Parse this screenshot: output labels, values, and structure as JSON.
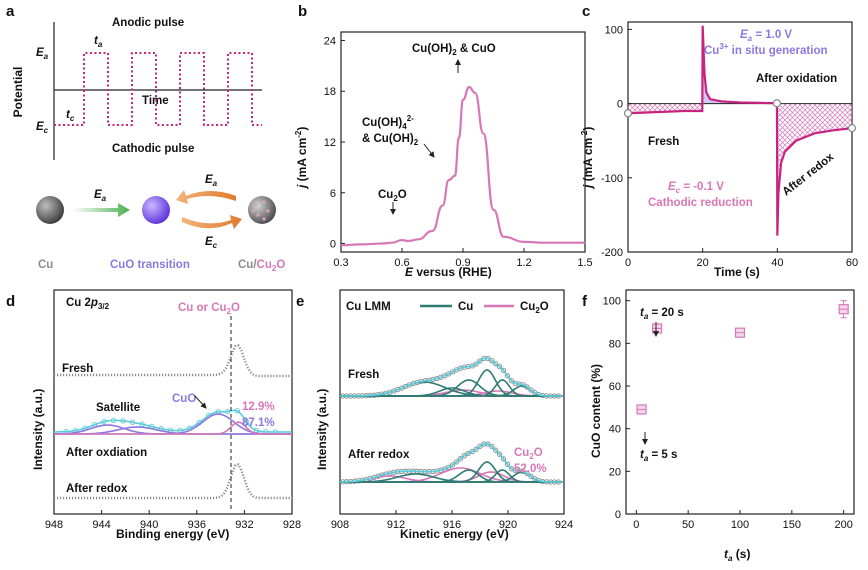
{
  "figure_title": "",
  "colors": {
    "pink": "#d877b8",
    "magenta": "#c8247f",
    "purple": "#8b78e0",
    "teal": "#2f7b74",
    "cyan": "#5ccbd9",
    "gray": "#8a8a8a",
    "orange": "#e07a2e",
    "green": "#5cba5c"
  },
  "panel_a": {
    "label": "a",
    "anodic": "Anodic pulse",
    "cathodic": "Cathodic pulse",
    "ylabel": "Potential",
    "xlabel": "Time",
    "ea": "E",
    "ea_sub": "a",
    "ec": "E",
    "ec_sub": "c",
    "ta": "t",
    "ta_sub": "a",
    "tc": "t",
    "tc_sub": "c",
    "arrow_ea": "E",
    "arrow_ea_sub": "a",
    "arrow_ec": "E",
    "arrow_ec_sub": "c",
    "lbl_cu": "Cu",
    "lbl_cuo": "CuO transition",
    "lbl_cu2o_a": "Cu/",
    "lbl_cu2o_b": "Cu",
    "lbl_cu2o_sub": "2",
    "lbl_cu2o_c": "O"
  },
  "chart_data": [
    {
      "panel": "b",
      "type": "line",
      "xlabel_pre": "E",
      "xlabel_post": " versus (RHE)",
      "ylabel_pre": "j",
      "ylabel_post": " (mA cm",
      "ylabel_sup": "-2",
      "ylabel_end": ")",
      "xlim": [
        0.3,
        1.5
      ],
      "ylim": [
        -1,
        25
      ],
      "xticks": [
        "0.3",
        "0.6",
        "0.9",
        "1.2",
        "1.5"
      ],
      "xtick_vals": [
        0.3,
        0.6,
        0.9,
        1.2,
        1.5
      ],
      "yticks": [
        "0",
        "6",
        "12",
        "18",
        "24"
      ],
      "ytick_vals": [
        0,
        6,
        12,
        18,
        24
      ],
      "series": [
        {
          "name": "LSV",
          "x": [
            0.3,
            0.4,
            0.5,
            0.55,
            0.6,
            0.63,
            0.68,
            0.75,
            0.8,
            0.83,
            0.86,
            0.88,
            0.9,
            0.93,
            0.96,
            1.0,
            1.05,
            1.1,
            1.2,
            1.3,
            1.5
          ],
          "y": [
            -0.2,
            -0.1,
            0,
            0.1,
            0.4,
            0.3,
            0.5,
            1.5,
            4.5,
            7.5,
            8.0,
            12.5,
            17.0,
            18.5,
            17.8,
            13.0,
            4.0,
            0.8,
            0.2,
            0.1,
            0.1
          ]
        }
      ],
      "annotations": {
        "peak1_a": "Cu",
        "peak1_sub": "2",
        "peak1_b": "O",
        "peak2_l1_a": "Cu(OH)",
        "peak2_l1_sub": "4",
        "peak2_l1_sup": "2-",
        "peak2_l2_a": "& Cu(OH)",
        "peak2_l2_sub": "2",
        "peak3_a": "Cu(OH)",
        "peak3_sub": "2",
        "peak3_b": " & CuO"
      }
    },
    {
      "panel": "c",
      "type": "line",
      "xlabel": "Time (s)",
      "ylabel_pre": "j",
      "ylabel_post": " (mA cm",
      "ylabel_sup": "-2",
      "ylabel_end": ")",
      "xlim": [
        0,
        60
      ],
      "ylim": [
        -200,
        110
      ],
      "xticks": [
        "0",
        "20",
        "40",
        "60"
      ],
      "xtick_vals": [
        0,
        20,
        40,
        60
      ],
      "yticks": [
        "-200",
        "-100",
        "0",
        "100"
      ],
      "ytick_vals": [
        -200,
        -100,
        0,
        100
      ],
      "series": [
        {
          "name": "pulse current",
          "x": [
            0,
            5,
            10,
            15,
            19.9,
            20,
            20.5,
            21,
            22,
            25,
            30,
            35,
            39.9,
            40,
            40.3,
            41,
            42,
            45,
            50,
            55,
            60
          ],
          "y": [
            -13,
            -12,
            -11,
            -10,
            -10,
            105,
            40,
            15,
            6,
            3,
            1.5,
            1,
            0.5,
            -178,
            -120,
            -80,
            -65,
            -50,
            -40,
            -36,
            -33
          ]
        }
      ],
      "ann": {
        "ea_a": "E",
        "ea_sub": "a",
        "ea_b": " = 1.0 V",
        "cu3_a": "Cu",
        "cu3_sup": "3+",
        "cu3_b": " in situ generation",
        "after_ox": "After oxidation",
        "fresh": "Fresh",
        "after_redox": "After redox",
        "ec_a": "E",
        "ec_sub": "c",
        "ec_b": " = -0.1 V",
        "cath": "Cathodic reduction"
      }
    },
    {
      "panel": "d",
      "type": "line",
      "xlabel": "Binding energy (eV)",
      "ylabel": "Intensity (a.u.)",
      "xlim": [
        948,
        928
      ],
      "xticks": [
        "948",
        "944",
        "940",
        "936",
        "932",
        "928"
      ],
      "xtick_vals": [
        948,
        944,
        940,
        936,
        932,
        928
      ],
      "title_a": "Cu  2",
      "title_p": "p",
      "title_sub": "3/2",
      "dash_a": "Cu or Cu",
      "dash_sub": "2",
      "dash_b": "O",
      "labels": {
        "fresh": "Fresh",
        "satellite": "Satellite",
        "cuo": "CuO",
        "pct1": "12.9%",
        "pct2": "87.1%",
        "after_ox": "After oxdiation",
        "after_redox": "After redox"
      }
    },
    {
      "panel": "e",
      "type": "line",
      "xlabel": "Kinetic energy (eV)",
      "ylabel": "Intensity (a.u.)",
      "xlim": [
        908,
        924
      ],
      "xticks": [
        "908",
        "912",
        "916",
        "920",
        "924"
      ],
      "xtick_vals": [
        908,
        912,
        916,
        920,
        924
      ],
      "title": "Cu  LMM",
      "legend": [
        {
          "name": "Cu",
          "color": "#2f7b74"
        },
        {
          "name_a": "Cu",
          "name_sub": "2",
          "name_b": "O",
          "color": "#d877b8"
        }
      ],
      "labels": {
        "fresh": "Fresh",
        "after_redox": "After redox",
        "cu2o_a": "Cu",
        "cu2o_sub": "2",
        "cu2o_b": "O",
        "pct": "52.0%"
      }
    },
    {
      "panel": "f",
      "type": "scatter",
      "xlabel_pre": "t",
      "xlabel_sub": "a",
      "xlabel_post": " (s)",
      "ylabel": "CuO content (%)",
      "xlim": [
        -10,
        210
      ],
      "ylim": [
        0,
        105
      ],
      "xticks": [
        "0",
        "50",
        "100",
        "150",
        "200"
      ],
      "xtick_vals": [
        0,
        50,
        100,
        150,
        200
      ],
      "yticks": [
        "0",
        "20",
        "40",
        "60",
        "80",
        "100"
      ],
      "ytick_vals": [
        0,
        20,
        40,
        60,
        80,
        100
      ],
      "points": [
        {
          "x": 5,
          "y": 49,
          "err": 1.5
        },
        {
          "x": 20,
          "y": 87,
          "err": 1.5
        },
        {
          "x": 100,
          "y": 85,
          "err": 1.5
        },
        {
          "x": 200,
          "y": 96,
          "err": 4
        }
      ],
      "ann_top_a": "t",
      "ann_top_sub": "a",
      "ann_top_b": " = 20 s",
      "ann_bot_a": "t",
      "ann_bot_sub": "a",
      "ann_bot_b": " = 5 s"
    }
  ]
}
